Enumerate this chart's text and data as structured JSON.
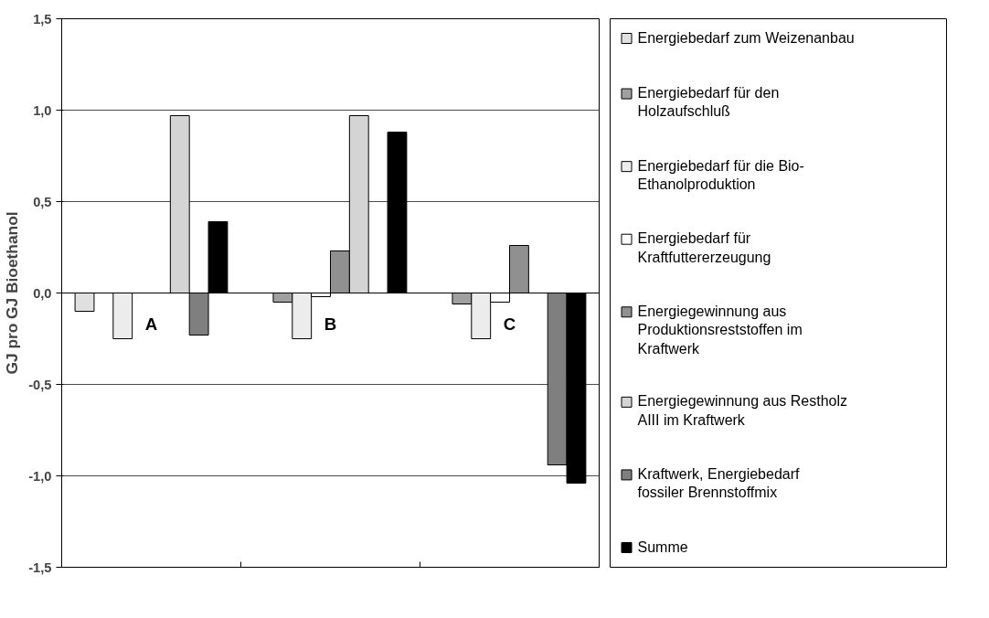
{
  "chart_data": {
    "type": "bar",
    "ylabel": "GJ pro GJ Bioethanol",
    "categories": [
      "A",
      "B",
      "C"
    ],
    "series": [
      {
        "name": "Energiebedarf zum Weizenanbau",
        "color": "#e0e0e0",
        "values": [
          -0.1,
          null,
          null
        ]
      },
      {
        "name": "Energiebedarf für den Holzaufschluß",
        "color": "#a0a0a0",
        "values": [
          null,
          -0.05,
          -0.06
        ]
      },
      {
        "name": "Energiebedarf für die Bio-Ethanolproduktion",
        "color": "#ececec",
        "values": [
          -0.25,
          -0.25,
          -0.25
        ]
      },
      {
        "name": "Energiebedarf für Kraftfuttererzeugung",
        "color": "#ffffff",
        "values": [
          null,
          -0.02,
          -0.05
        ]
      },
      {
        "name": "Energiegewinnung aus Produktionsreststoffen im Kraftwerk",
        "color": "#909090",
        "values": [
          null,
          0.23,
          0.26
        ]
      },
      {
        "name": "Energiegewinnung aus Restholz AIII im Kraftwerk",
        "color": "#d4d4d4",
        "values": [
          0.97,
          0.97,
          null
        ]
      },
      {
        "name": "Kraftwerk, Energiebedarf fossiler Brennstoffmix",
        "color": "#7f7f7f",
        "values": [
          -0.23,
          null,
          -0.94
        ]
      },
      {
        "name": "Summe",
        "color": "#000000",
        "values": [
          0.39,
          0.88,
          -1.04
        ]
      }
    ],
    "ylim": [
      -1.5,
      1.5
    ],
    "yticks": [
      {
        "value": -1.5,
        "label": "-1,5"
      },
      {
        "value": -1.0,
        "label": "-1,0"
      },
      {
        "value": -0.5,
        "label": "-0,5"
      },
      {
        "value": 0,
        "label": "0,0"
      },
      {
        "value": 0.5,
        "label": "0,5"
      },
      {
        "value": 1.0,
        "label": "1,0"
      },
      {
        "value": 1.5,
        "label": "1,5"
      }
    ],
    "grid": "y",
    "legend": "right"
  }
}
